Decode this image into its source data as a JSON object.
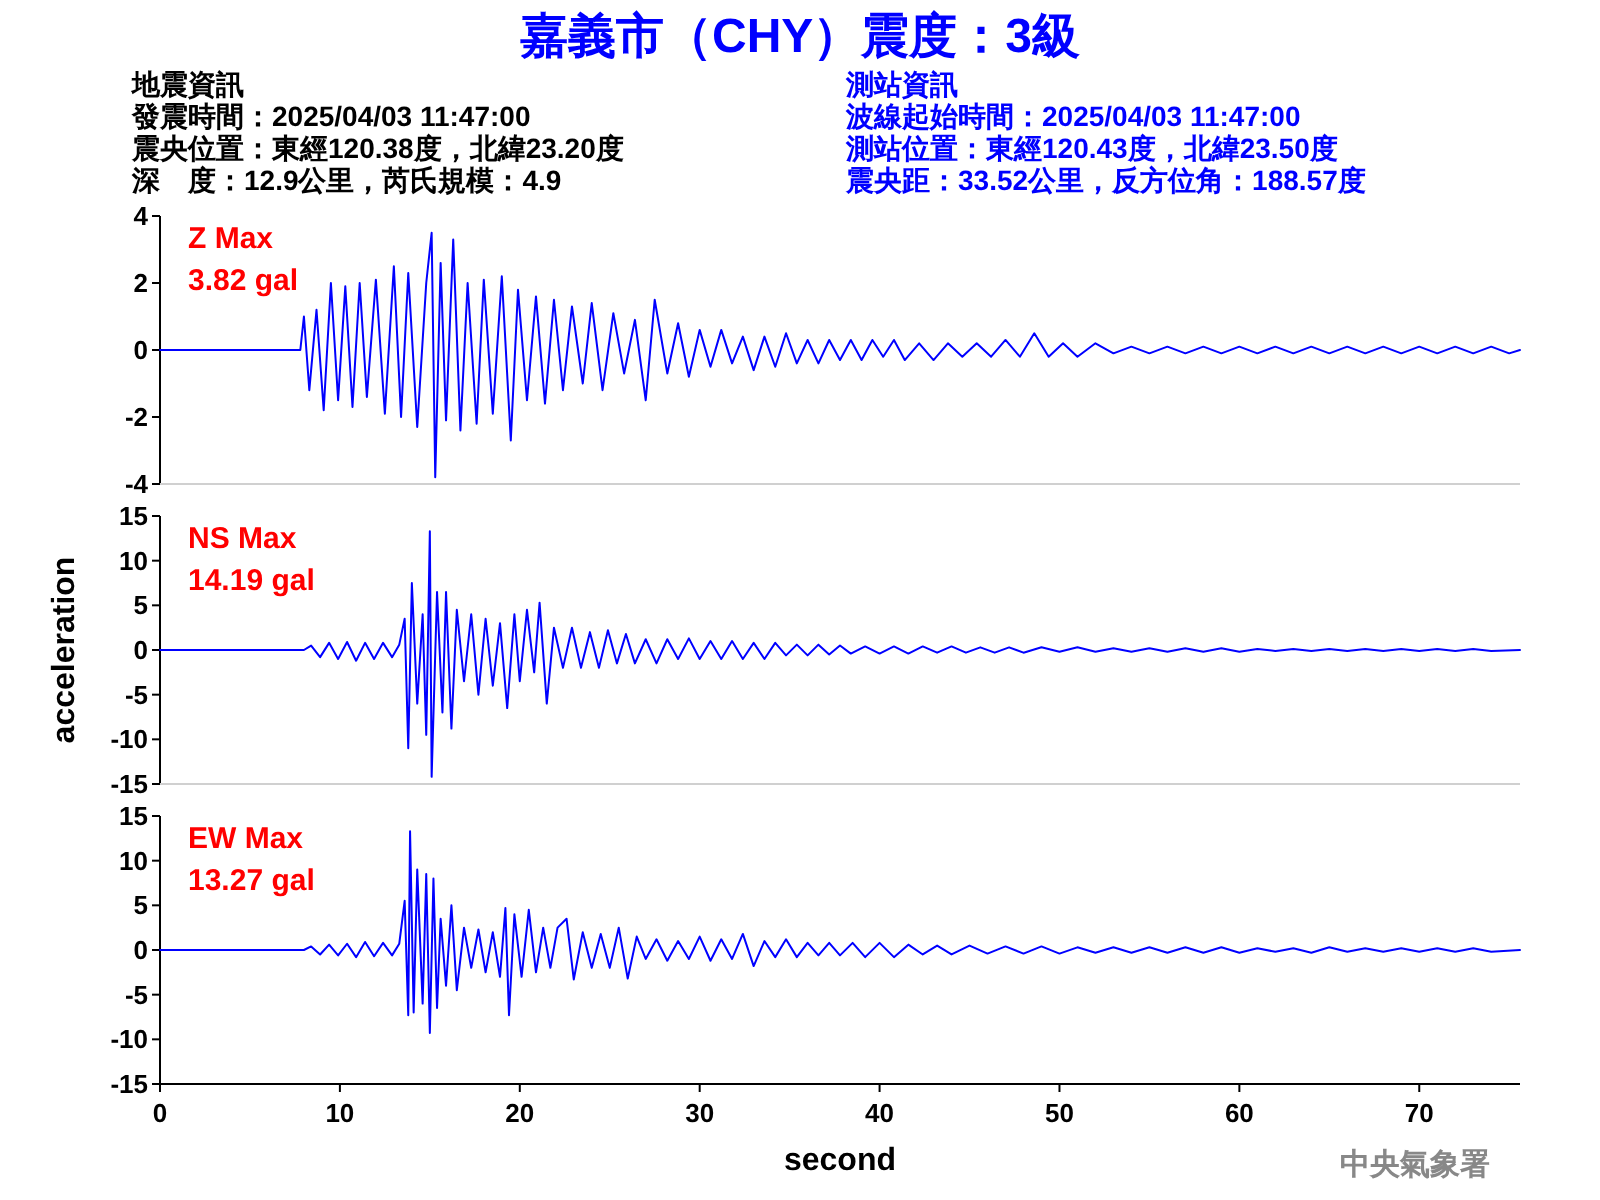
{
  "chart_data": [
    {
      "type": "line",
      "title": "嘉義市（CHY）震度：3級",
      "xlim": [
        0,
        75.6
      ],
      "ylim": [
        -4,
        4
      ],
      "yticks": [
        -4,
        -2,
        0,
        2,
        4
      ],
      "tick_labels": "y",
      "annotations": [
        "Z Max",
        "3.82 gal",
        "地震資訊",
        "發震時間：2025/04/03 11:47:00",
        "震央位置：東經120.38度，北緯23.20度",
        "深　度：12.9公里，芮氏規模：4.9",
        "測站資訊",
        "波線起始時間：2025/04/03 11:47:00",
        "測站位置：東經120.43度，北緯23.50度",
        "震央距：33.52公里，反方位角：188.57度"
      ],
      "series": [
        {
          "color": "#0000ff",
          "x": [
            0,
            7.8,
            8.0,
            8.3,
            8.7,
            9.1,
            9.5,
            9.9,
            10.3,
            10.7,
            11.1,
            11.5,
            12.0,
            12.5,
            13.0,
            13.4,
            13.8,
            14.3,
            14.8,
            15.1,
            15.3,
            15.6,
            15.9,
            16.3,
            16.7,
            17.1,
            17.6,
            18.0,
            18.5,
            19.0,
            19.5,
            19.9,
            20.4,
            20.9,
            21.4,
            21.9,
            22.4,
            22.9,
            23.5,
            24.0,
            24.6,
            25.2,
            25.8,
            26.4,
            27.0,
            27.5,
            28.2,
            28.8,
            29.4,
            30.0,
            30.6,
            31.2,
            31.8,
            32.4,
            33.0,
            33.6,
            34.2,
            34.8,
            35.4,
            36.0,
            36.6,
            37.2,
            37.8,
            38.4,
            39.0,
            39.6,
            40.2,
            40.8,
            41.4,
            42.2,
            43.0,
            43.8,
            44.6,
            45.4,
            46.2,
            47.0,
            47.8,
            48.6,
            49.4,
            50.2,
            51.0,
            52.0,
            53.0,
            54.0,
            55.0,
            56.0,
            57.0,
            58.0,
            59.0,
            60.0,
            61.0,
            62.0,
            63.0,
            64.0,
            65.0,
            66.0,
            67.0,
            68.0,
            69.0,
            70.0,
            71.0,
            72.0,
            73.0,
            74.0,
            75.0,
            75.6
          ],
          "values": [
            0,
            0,
            1.0,
            -1.2,
            1.2,
            -1.8,
            2.0,
            -1.5,
            1.9,
            -1.7,
            2.0,
            -1.4,
            2.1,
            -1.9,
            2.5,
            -2.0,
            2.3,
            -2.3,
            2.0,
            3.5,
            -3.8,
            2.6,
            -2.1,
            3.3,
            -2.4,
            2.0,
            -2.2,
            2.1,
            -1.9,
            2.2,
            -2.7,
            1.8,
            -1.5,
            1.6,
            -1.6,
            1.5,
            -1.2,
            1.3,
            -1.0,
            1.4,
            -1.2,
            1.1,
            -0.7,
            0.9,
            -1.5,
            1.5,
            -0.7,
            0.8,
            -0.8,
            0.6,
            -0.5,
            0.6,
            -0.4,
            0.4,
            -0.6,
            0.4,
            -0.5,
            0.5,
            -0.4,
            0.3,
            -0.4,
            0.3,
            -0.3,
            0.3,
            -0.3,
            0.3,
            -0.2,
            0.3,
            -0.3,
            0.2,
            -0.3,
            0.2,
            -0.2,
            0.2,
            -0.2,
            0.3,
            -0.2,
            0.5,
            -0.2,
            0.2,
            -0.2,
            0.2,
            -0.1,
            0.1,
            -0.1,
            0.1,
            -0.1,
            0.1,
            -0.1,
            0.1,
            -0.1,
            0.1,
            -0.1,
            0.1,
            -0.1,
            0.1,
            -0.1,
            0.1,
            -0.1,
            0.1,
            -0.1,
            0.1,
            -0.1,
            0.1,
            -0.1,
            0
          ]
        }
      ]
    },
    {
      "type": "line",
      "ylabel": "acceleration",
      "xlim": [
        0,
        75.6
      ],
      "ylim": [
        -15,
        15
      ],
      "yticks": [
        -15,
        -10,
        -5,
        0,
        5,
        10,
        15
      ],
      "tick_labels": "y",
      "annotations": [
        "NS Max",
        "14.19 gal"
      ],
      "series": [
        {
          "color": "#0000ff",
          "x": [
            0,
            8.0,
            8.4,
            8.9,
            9.4,
            9.9,
            10.4,
            10.9,
            11.4,
            11.9,
            12.4,
            12.9,
            13.3,
            13.6,
            13.8,
            14.0,
            14.3,
            14.6,
            14.8,
            15.0,
            15.1,
            15.4,
            15.7,
            15.9,
            16.2,
            16.5,
            16.9,
            17.3,
            17.7,
            18.1,
            18.5,
            18.9,
            19.3,
            19.7,
            20.0,
            20.4,
            20.8,
            21.1,
            21.5,
            21.9,
            22.4,
            22.9,
            23.4,
            23.9,
            24.4,
            24.9,
            25.4,
            25.9,
            26.4,
            27.0,
            27.6,
            28.2,
            28.8,
            29.4,
            30.0,
            30.6,
            31.2,
            31.8,
            32.4,
            33.0,
            33.6,
            34.2,
            34.8,
            35.4,
            36.0,
            36.6,
            37.2,
            37.8,
            38.4,
            39.2,
            40.0,
            40.8,
            41.6,
            42.4,
            43.2,
            44.0,
            44.8,
            45.6,
            46.4,
            47.2,
            48.0,
            49.0,
            50.0,
            51.0,
            52.0,
            53.0,
            54.0,
            55.0,
            56.0,
            57.0,
            58.0,
            59.0,
            60.0,
            61.0,
            62.0,
            63.0,
            64.0,
            65.0,
            66.0,
            67.0,
            68.0,
            69.0,
            70.0,
            71.0,
            72.0,
            73.0,
            74.0,
            75.6
          ],
          "values": [
            0,
            0,
            0.5,
            -0.8,
            0.8,
            -1.0,
            0.9,
            -1.2,
            0.8,
            -1.0,
            0.8,
            -0.8,
            0.6,
            3.5,
            -11.0,
            7.5,
            -6.0,
            4.0,
            -9.5,
            13.3,
            -14.2,
            6.5,
            -7.0,
            6.5,
            -8.8,
            4.5,
            -3.5,
            4.0,
            -5.0,
            3.5,
            -4.0,
            3.0,
            -6.5,
            4.0,
            -3.5,
            4.5,
            -2.5,
            5.3,
            -6.0,
            2.5,
            -2.0,
            2.5,
            -2.0,
            2.0,
            -2.0,
            2.2,
            -1.5,
            1.8,
            -1.5,
            1.2,
            -1.5,
            1.2,
            -1.0,
            1.3,
            -1.0,
            1.0,
            -1.0,
            1.0,
            -1.0,
            0.8,
            -1.0,
            0.8,
            -0.6,
            0.6,
            -0.6,
            0.6,
            -0.5,
            0.5,
            -0.4,
            0.4,
            -0.4,
            0.4,
            -0.4,
            0.4,
            -0.3,
            0.4,
            -0.3,
            0.3,
            -0.3,
            0.3,
            -0.3,
            0.3,
            -0.2,
            0.3,
            -0.2,
            0.2,
            -0.2,
            0.2,
            -0.2,
            0.2,
            -0.2,
            0.2,
            -0.2,
            0.1,
            -0.1,
            0.1,
            -0.1,
            0.1,
            -0.1,
            0.1,
            -0.1,
            0.1,
            -0.1,
            0.1,
            -0.1,
            0.1,
            -0.1,
            0
          ]
        }
      ]
    },
    {
      "type": "line",
      "xlabel": "second",
      "xlim": [
        0,
        75.6
      ],
      "ylim": [
        -15,
        15
      ],
      "yticks": [
        -15,
        -10,
        -5,
        0,
        5,
        10,
        15
      ],
      "xticks": [
        0,
        10,
        20,
        30,
        40,
        50,
        60,
        70
      ],
      "annotations": [
        "EW Max",
        "13.27 gal",
        "中央氣象署"
      ],
      "series": [
        {
          "color": "#0000ff",
          "x": [
            0,
            8.0,
            8.4,
            8.9,
            9.4,
            9.9,
            10.4,
            10.9,
            11.4,
            11.9,
            12.4,
            12.9,
            13.3,
            13.6,
            13.8,
            13.9,
            14.1,
            14.3,
            14.6,
            14.8,
            15.0,
            15.2,
            15.4,
            15.6,
            15.9,
            16.2,
            16.5,
            16.9,
            17.3,
            17.7,
            18.1,
            18.5,
            18.9,
            19.2,
            19.4,
            19.7,
            20.1,
            20.5,
            20.9,
            21.3,
            21.7,
            22.1,
            22.6,
            23.0,
            23.5,
            24.0,
            24.5,
            25.0,
            25.5,
            26.0,
            26.5,
            27.0,
            27.6,
            28.2,
            28.8,
            29.4,
            30.0,
            30.6,
            31.2,
            31.8,
            32.4,
            33.0,
            33.6,
            34.2,
            34.8,
            35.4,
            36.0,
            36.6,
            37.2,
            37.8,
            38.5,
            39.2,
            40.0,
            40.8,
            41.6,
            42.4,
            43.2,
            44.0,
            45.0,
            46.0,
            47.0,
            48.0,
            49.0,
            50.0,
            51.0,
            52.0,
            53.0,
            54.0,
            55.0,
            56.0,
            57.0,
            58.0,
            59.0,
            60.0,
            61.0,
            62.0,
            63.0,
            64.0,
            65.0,
            66.0,
            67.0,
            68.0,
            69.0,
            70.0,
            71.0,
            72.0,
            73.0,
            74.0,
            75.6
          ],
          "values": [
            0,
            0,
            0.4,
            -0.5,
            0.6,
            -0.6,
            0.7,
            -0.8,
            0.9,
            -0.7,
            0.8,
            -0.6,
            0.7,
            5.5,
            -7.3,
            13.3,
            -7.0,
            9.0,
            -6.0,
            8.5,
            -9.3,
            8.0,
            -6.5,
            3.5,
            -4.0,
            5.0,
            -4.5,
            2.5,
            -2.0,
            2.3,
            -2.5,
            2.0,
            -3.0,
            4.7,
            -7.3,
            4.0,
            -3.0,
            4.5,
            -2.5,
            2.5,
            -2.0,
            2.5,
            3.5,
            -3.3,
            2.0,
            -2.0,
            1.8,
            -2.0,
            2.5,
            -3.2,
            1.5,
            -1.0,
            1.2,
            -1.2,
            1.0,
            -1.0,
            1.5,
            -1.2,
            1.2,
            -1.0,
            1.8,
            -1.8,
            1.0,
            -0.8,
            1.2,
            -0.8,
            0.8,
            -0.6,
            0.8,
            -0.6,
            0.8,
            -0.8,
            0.8,
            -0.8,
            0.6,
            -0.5,
            0.5,
            -0.5,
            0.5,
            -0.4,
            0.4,
            -0.4,
            0.4,
            -0.4,
            0.3,
            -0.3,
            0.3,
            -0.3,
            0.3,
            -0.3,
            0.3,
            -0.3,
            0.3,
            -0.3,
            0.2,
            -0.2,
            0.2,
            -0.3,
            0.3,
            -0.2,
            0.2,
            -0.2,
            0.2,
            -0.2,
            0.2,
            -0.2,
            0.2,
            -0.2,
            0
          ]
        }
      ]
    }
  ]
}
